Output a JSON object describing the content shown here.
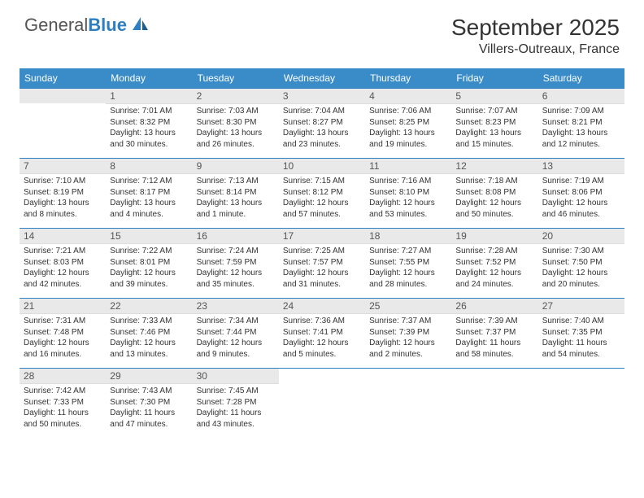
{
  "brand": {
    "name_gray": "General",
    "name_blue": "Blue"
  },
  "title": {
    "month": "September 2025",
    "location": "Villers-Outreaux, France"
  },
  "colors": {
    "header_bg": "#3a8cc9",
    "rule": "#2d7fc1",
    "daynum_bg": "#e9e9e9",
    "text": "#333333",
    "logo_gray": "#555555",
    "logo_blue": "#2d7fc1"
  },
  "days_of_week": [
    "Sunday",
    "Monday",
    "Tuesday",
    "Wednesday",
    "Thursday",
    "Friday",
    "Saturday"
  ],
  "weeks": [
    [
      null,
      {
        "n": "1",
        "sr": "Sunrise: 7:01 AM",
        "ss": "Sunset: 8:32 PM",
        "d1": "Daylight: 13 hours",
        "d2": "and 30 minutes."
      },
      {
        "n": "2",
        "sr": "Sunrise: 7:03 AM",
        "ss": "Sunset: 8:30 PM",
        "d1": "Daylight: 13 hours",
        "d2": "and 26 minutes."
      },
      {
        "n": "3",
        "sr": "Sunrise: 7:04 AM",
        "ss": "Sunset: 8:27 PM",
        "d1": "Daylight: 13 hours",
        "d2": "and 23 minutes."
      },
      {
        "n": "4",
        "sr": "Sunrise: 7:06 AM",
        "ss": "Sunset: 8:25 PM",
        "d1": "Daylight: 13 hours",
        "d2": "and 19 minutes."
      },
      {
        "n": "5",
        "sr": "Sunrise: 7:07 AM",
        "ss": "Sunset: 8:23 PM",
        "d1": "Daylight: 13 hours",
        "d2": "and 15 minutes."
      },
      {
        "n": "6",
        "sr": "Sunrise: 7:09 AM",
        "ss": "Sunset: 8:21 PM",
        "d1": "Daylight: 13 hours",
        "d2": "and 12 minutes."
      }
    ],
    [
      {
        "n": "7",
        "sr": "Sunrise: 7:10 AM",
        "ss": "Sunset: 8:19 PM",
        "d1": "Daylight: 13 hours",
        "d2": "and 8 minutes."
      },
      {
        "n": "8",
        "sr": "Sunrise: 7:12 AM",
        "ss": "Sunset: 8:17 PM",
        "d1": "Daylight: 13 hours",
        "d2": "and 4 minutes."
      },
      {
        "n": "9",
        "sr": "Sunrise: 7:13 AM",
        "ss": "Sunset: 8:14 PM",
        "d1": "Daylight: 13 hours",
        "d2": "and 1 minute."
      },
      {
        "n": "10",
        "sr": "Sunrise: 7:15 AM",
        "ss": "Sunset: 8:12 PM",
        "d1": "Daylight: 12 hours",
        "d2": "and 57 minutes."
      },
      {
        "n": "11",
        "sr": "Sunrise: 7:16 AM",
        "ss": "Sunset: 8:10 PM",
        "d1": "Daylight: 12 hours",
        "d2": "and 53 minutes."
      },
      {
        "n": "12",
        "sr": "Sunrise: 7:18 AM",
        "ss": "Sunset: 8:08 PM",
        "d1": "Daylight: 12 hours",
        "d2": "and 50 minutes."
      },
      {
        "n": "13",
        "sr": "Sunrise: 7:19 AM",
        "ss": "Sunset: 8:06 PM",
        "d1": "Daylight: 12 hours",
        "d2": "and 46 minutes."
      }
    ],
    [
      {
        "n": "14",
        "sr": "Sunrise: 7:21 AM",
        "ss": "Sunset: 8:03 PM",
        "d1": "Daylight: 12 hours",
        "d2": "and 42 minutes."
      },
      {
        "n": "15",
        "sr": "Sunrise: 7:22 AM",
        "ss": "Sunset: 8:01 PM",
        "d1": "Daylight: 12 hours",
        "d2": "and 39 minutes."
      },
      {
        "n": "16",
        "sr": "Sunrise: 7:24 AM",
        "ss": "Sunset: 7:59 PM",
        "d1": "Daylight: 12 hours",
        "d2": "and 35 minutes."
      },
      {
        "n": "17",
        "sr": "Sunrise: 7:25 AM",
        "ss": "Sunset: 7:57 PM",
        "d1": "Daylight: 12 hours",
        "d2": "and 31 minutes."
      },
      {
        "n": "18",
        "sr": "Sunrise: 7:27 AM",
        "ss": "Sunset: 7:55 PM",
        "d1": "Daylight: 12 hours",
        "d2": "and 28 minutes."
      },
      {
        "n": "19",
        "sr": "Sunrise: 7:28 AM",
        "ss": "Sunset: 7:52 PM",
        "d1": "Daylight: 12 hours",
        "d2": "and 24 minutes."
      },
      {
        "n": "20",
        "sr": "Sunrise: 7:30 AM",
        "ss": "Sunset: 7:50 PM",
        "d1": "Daylight: 12 hours",
        "d2": "and 20 minutes."
      }
    ],
    [
      {
        "n": "21",
        "sr": "Sunrise: 7:31 AM",
        "ss": "Sunset: 7:48 PM",
        "d1": "Daylight: 12 hours",
        "d2": "and 16 minutes."
      },
      {
        "n": "22",
        "sr": "Sunrise: 7:33 AM",
        "ss": "Sunset: 7:46 PM",
        "d1": "Daylight: 12 hours",
        "d2": "and 13 minutes."
      },
      {
        "n": "23",
        "sr": "Sunrise: 7:34 AM",
        "ss": "Sunset: 7:44 PM",
        "d1": "Daylight: 12 hours",
        "d2": "and 9 minutes."
      },
      {
        "n": "24",
        "sr": "Sunrise: 7:36 AM",
        "ss": "Sunset: 7:41 PM",
        "d1": "Daylight: 12 hours",
        "d2": "and 5 minutes."
      },
      {
        "n": "25",
        "sr": "Sunrise: 7:37 AM",
        "ss": "Sunset: 7:39 PM",
        "d1": "Daylight: 12 hours",
        "d2": "and 2 minutes."
      },
      {
        "n": "26",
        "sr": "Sunrise: 7:39 AM",
        "ss": "Sunset: 7:37 PM",
        "d1": "Daylight: 11 hours",
        "d2": "and 58 minutes."
      },
      {
        "n": "27",
        "sr": "Sunrise: 7:40 AM",
        "ss": "Sunset: 7:35 PM",
        "d1": "Daylight: 11 hours",
        "d2": "and 54 minutes."
      }
    ],
    [
      {
        "n": "28",
        "sr": "Sunrise: 7:42 AM",
        "ss": "Sunset: 7:33 PM",
        "d1": "Daylight: 11 hours",
        "d2": "and 50 minutes."
      },
      {
        "n": "29",
        "sr": "Sunrise: 7:43 AM",
        "ss": "Sunset: 7:30 PM",
        "d1": "Daylight: 11 hours",
        "d2": "and 47 minutes."
      },
      {
        "n": "30",
        "sr": "Sunrise: 7:45 AM",
        "ss": "Sunset: 7:28 PM",
        "d1": "Daylight: 11 hours",
        "d2": "and 43 minutes."
      },
      null,
      null,
      null,
      null
    ]
  ]
}
